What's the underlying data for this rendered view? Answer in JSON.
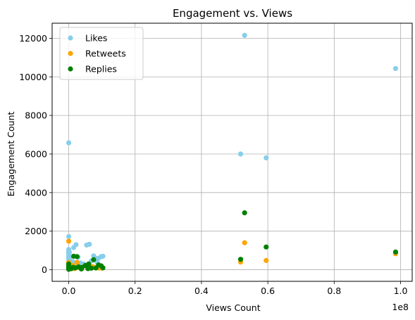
{
  "chart_data": {
    "type": "scatter",
    "title": "Engagement vs. Views",
    "xlabel": "Views Count",
    "ylabel": "Engagement Count",
    "x_offset_text": "1e8",
    "x_scale_factor": 100000000,
    "xlim": [
      -5000000,
      103500000
    ],
    "ylim": [
      -600,
      12780
    ],
    "x_ticks": [
      0,
      20000000,
      40000000,
      60000000,
      80000000,
      100000000
    ],
    "x_tick_labels": [
      "0.0",
      "0.2",
      "0.4",
      "0.6",
      "0.8",
      "1.0"
    ],
    "y_ticks": [
      0,
      2000,
      4000,
      6000,
      8000,
      10000,
      12000
    ],
    "y_tick_labels": [
      "0",
      "2000",
      "4000",
      "6000",
      "8000",
      "10000",
      "12000"
    ],
    "grid": true,
    "legend_position": "top-left",
    "series": [
      {
        "name": "Likes",
        "color": "#87ceeb",
        "points": [
          [
            53000000,
            12150
          ],
          [
            98500000,
            10430
          ],
          [
            0,
            6580
          ],
          [
            51800000,
            6000
          ],
          [
            59500000,
            5800
          ],
          [
            0,
            1720
          ],
          [
            0,
            1050
          ],
          [
            0,
            950
          ],
          [
            0,
            880
          ],
          [
            0,
            800
          ],
          [
            0,
            700
          ],
          [
            0,
            620
          ],
          [
            0,
            500
          ],
          [
            200000,
            900
          ],
          [
            300000,
            620
          ],
          [
            1500000,
            1150
          ],
          [
            2200000,
            1300
          ],
          [
            2800000,
            650
          ],
          [
            5400000,
            1280
          ],
          [
            6200000,
            1320
          ],
          [
            7500000,
            720
          ],
          [
            8000000,
            600
          ],
          [
            9000000,
            600
          ],
          [
            9800000,
            680
          ],
          [
            10300000,
            700
          ],
          [
            1200000,
            420
          ],
          [
            3500000,
            350
          ],
          [
            4500000,
            300
          ],
          [
            6800000,
            450
          ],
          [
            8600000,
            380
          ],
          [
            2000000,
            250
          ],
          [
            500000,
            300
          ],
          [
            400000,
            200
          ]
        ]
      },
      {
        "name": "Retweets",
        "color": "#ffa500",
        "points": [
          [
            0,
            1480
          ],
          [
            53000000,
            1400
          ],
          [
            98500000,
            830
          ],
          [
            59500000,
            480
          ],
          [
            51800000,
            400
          ],
          [
            0,
            380
          ],
          [
            0,
            280
          ],
          [
            0,
            180
          ],
          [
            0,
            100
          ],
          [
            300000,
            150
          ],
          [
            1200000,
            220
          ],
          [
            2500000,
            380
          ],
          [
            3200000,
            120
          ],
          [
            4800000,
            200
          ],
          [
            6500000,
            180
          ],
          [
            7200000,
            160
          ],
          [
            8500000,
            140
          ],
          [
            9200000,
            90
          ],
          [
            10000000,
            80
          ],
          [
            1800000,
            60
          ],
          [
            600000,
            50
          ]
        ]
      },
      {
        "name": "Replies",
        "color": "#008000",
        "points": [
          [
            53000000,
            2950
          ],
          [
            59500000,
            1180
          ],
          [
            98500000,
            920
          ],
          [
            51800000,
            540
          ],
          [
            1500000,
            700
          ],
          [
            2500000,
            680
          ],
          [
            7500000,
            520
          ],
          [
            6000000,
            300
          ],
          [
            5000000,
            220
          ],
          [
            3000000,
            150
          ],
          [
            4000000,
            120
          ],
          [
            0,
            300
          ],
          [
            0,
            200
          ],
          [
            0,
            150
          ],
          [
            0,
            100
          ],
          [
            0,
            50
          ],
          [
            0,
            20
          ],
          [
            300000,
            80
          ],
          [
            800000,
            60
          ],
          [
            1300000,
            120
          ],
          [
            2000000,
            100
          ],
          [
            8200000,
            90
          ],
          [
            9000000,
            250
          ],
          [
            9800000,
            200
          ],
          [
            10300000,
            100
          ],
          [
            6800000,
            80
          ],
          [
            5800000,
            60
          ],
          [
            3800000,
            40
          ]
        ]
      }
    ]
  }
}
